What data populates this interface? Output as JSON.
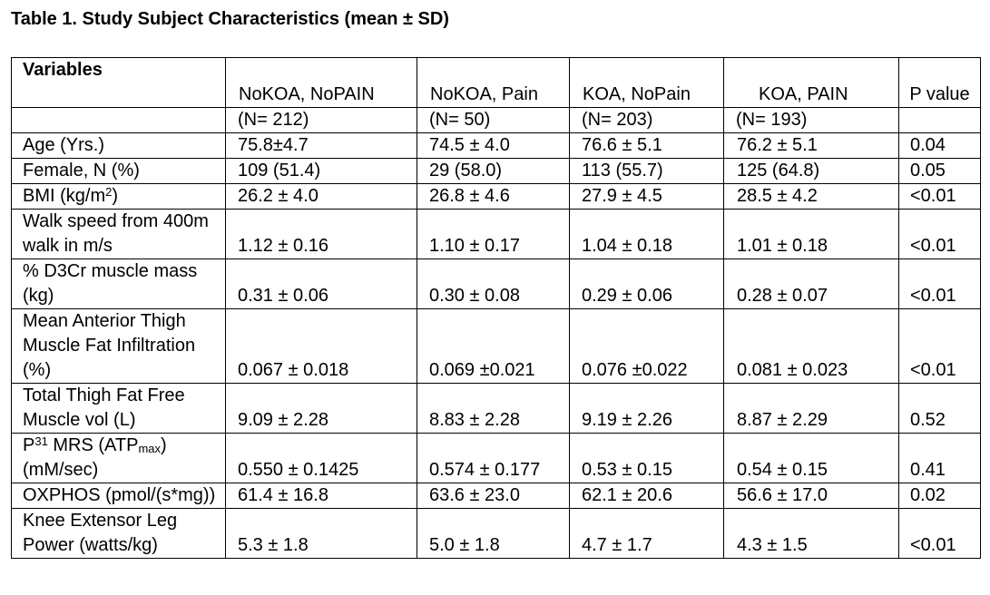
{
  "title": "Table 1. Study Subject Characteristics (mean ± SD)",
  "header": {
    "variables": "Variables",
    "groups": [
      "NoKOA, NoPAIN",
      "NoKOA, Pain",
      "KOA, NoPain",
      "KOA, PAIN"
    ],
    "p_value": "P value",
    "n": [
      "(N= 212)",
      "(N= 50)",
      "(N= 203)",
      "(N= 193)"
    ]
  },
  "rows": [
    {
      "label": "Age (Yrs.)",
      "values": [
        "75.8±4.7",
        "74.5 ± 4.0",
        "76.6 ± 5.1",
        "76.2 ± 5.1"
      ],
      "p": "0.04"
    },
    {
      "label": "Female, N (%)",
      "values": [
        "109 (51.4)",
        "29 (58.0)",
        "113 (55.7)",
        "125 (64.8)"
      ],
      "p": "0.05"
    },
    {
      "label": "BMI (kg/m",
      "label_sup": "2",
      "label_after": ")",
      "values": [
        "26.2 ± 4.0",
        "26.8 ± 4.6",
        "27.9 ± 4.5",
        "28.5 ± 4.2"
      ],
      "p": "<0.01"
    },
    {
      "label": "Walk speed from 400m walk in m/s",
      "values": [
        "1.12 ± 0.16",
        "1.10 ± 0.17",
        "1.04 ± 0.18",
        "1.01 ± 0.18"
      ],
      "p": "<0.01"
    },
    {
      "label": "% D3Cr muscle mass (kg)",
      "values": [
        "0.31 ± 0.06",
        "0.30 ± 0.08",
        "0.29 ± 0.06",
        "0.28 ± 0.07"
      ],
      "p": "<0.01"
    },
    {
      "label": "Mean Anterior Thigh Muscle Fat Infiltration (%)",
      "values": [
        "0.067 ± 0.018",
        "0.069 ±0.021",
        "0.076 ±0.022",
        "0.081 ± 0.023"
      ],
      "p": "<0.01"
    },
    {
      "label": "Total Thigh Fat Free Muscle vol (L)",
      "values": [
        "9.09 ± 2.28",
        "8.83 ± 2.28",
        "9.19 ± 2.26",
        "8.87 ± 2.29"
      ],
      "p": "0.52"
    },
    {
      "label": "P",
      "label_sup": "31",
      "label_mid": " MRS (ATP",
      "label_sub": "max",
      "label_after": ") (mM/sec)",
      "values": [
        "0.550 ± 0.1425",
        "0.574 ± 0.177",
        "0.53 ± 0.15",
        "0.54 ± 0.15"
      ],
      "p": "0.41"
    },
    {
      "label": "OXPHOS (pmol/(s*mg))",
      "values": [
        "61.4 ± 16.8",
        "63.6 ± 23.0",
        "62.1 ± 20.6",
        "56.6 ± 17.0"
      ],
      "p": "0.02"
    },
    {
      "label": "Knee Extensor Leg Power (watts/kg)",
      "values": [
        "5.3 ± 1.8",
        "5.0 ± 1.8",
        "4.7 ± 1.7",
        "4.3 ± 1.5"
      ],
      "p": "<0.01"
    }
  ]
}
